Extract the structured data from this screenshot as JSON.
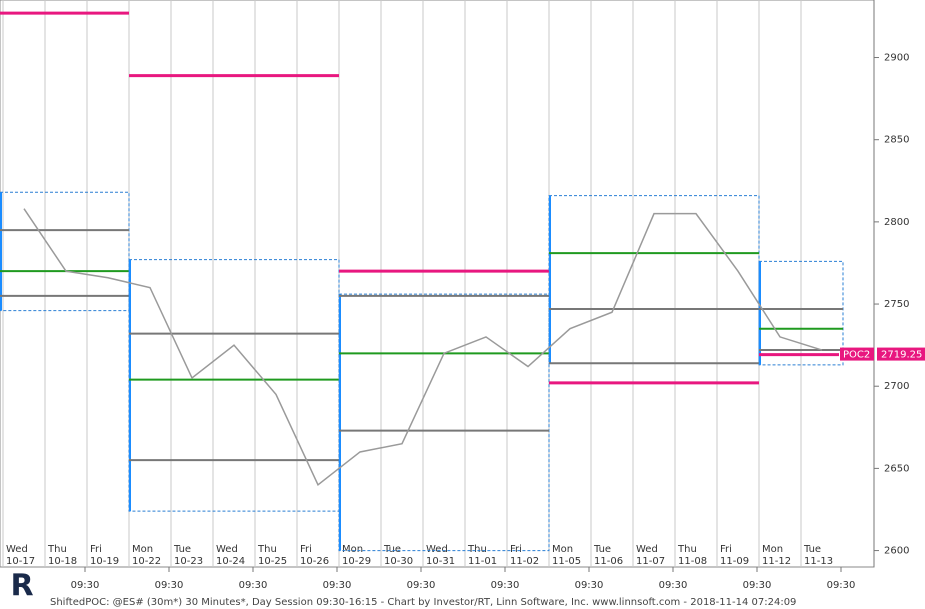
{
  "chart_data": {
    "type": "line",
    "weekdays": [
      "Wed",
      "Thu",
      "Fri",
      "Mon",
      "Tue",
      "Wed",
      "Thu",
      "Fri",
      "Mon",
      "Tue",
      "Wed",
      "Thu",
      "Fri",
      "Mon",
      "Tue",
      "Wed",
      "Thu",
      "Fri",
      "Mon",
      "Tue"
    ],
    "categories": [
      "10-17",
      "10-18",
      "10-19",
      "10-22",
      "10-23",
      "10-24",
      "10-25",
      "10-26",
      "10-29",
      "10-30",
      "10-31",
      "11-01",
      "11-02",
      "11-05",
      "11-06",
      "11-07",
      "11-08",
      "11-09",
      "11-12",
      "11-13"
    ],
    "series": [
      {
        "color": "#9a9a9a",
        "values": [
          2808,
          2770,
          2766,
          2760,
          2705,
          2725,
          2695,
          2640,
          2660,
          2665,
          2720,
          2730,
          2712,
          2735,
          2745,
          2805,
          2805,
          2770,
          2730,
          2722
        ]
      }
    ],
    "weekly": {
      "range_high": [
        2818,
        2777,
        2756,
        2816,
        2776
      ],
      "range_low": [
        2746,
        2624,
        2600,
        2714,
        2713
      ],
      "value_area_high": [
        2795,
        2732,
        2755,
        2747,
        2747
      ],
      "poc": [
        2770,
        2704,
        2720,
        2781,
        2735
      ],
      "value_area_low": [
        2755,
        2655,
        2673,
        2714,
        2722
      ],
      "shifted_poc": [
        2927,
        2889,
        2770,
        2702,
        2719.25
      ]
    },
    "poc_tag": "POC2",
    "time_label": "09:30",
    "ylim": [
      2590,
      2935
    ],
    "yticks": [
      2600,
      2650,
      2700,
      2750,
      2800,
      2850,
      2900
    ],
    "footer": "ShiftedPOC: @ES# (30m*) 30 Minutes*, Day Session 09:30-16:15 - Chart by Investor/RT, Linn Software, Inc. www.linnsoft.com - 2018-11-14 07:24:09"
  }
}
